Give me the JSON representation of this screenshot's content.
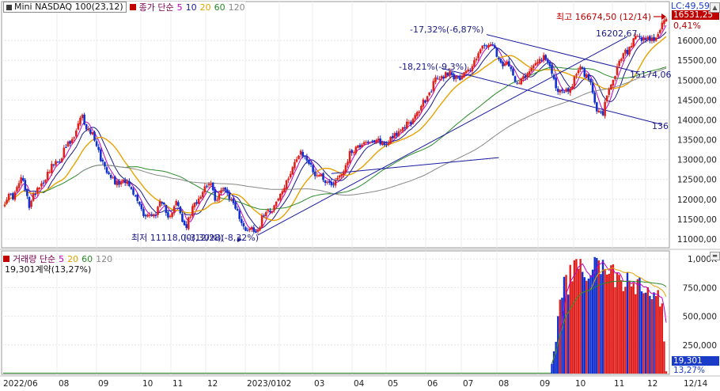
{
  "header": {
    "symbol": "Mini NASDAQ 100(23,12)",
    "ma_title": "종가 단순",
    "ma_periods": [
      "5",
      "10",
      "20",
      "60",
      "120"
    ]
  },
  "volume_header": {
    "title": "거래량 단순",
    "ma_periods": [
      "5",
      "20",
      "60",
      "120"
    ],
    "summary": "19,301계약(13,27%)"
  },
  "price_axis": {
    "ticks": [
      "16000,00",
      "15500,00",
      "15000,00",
      "14500,00",
      "14000,00",
      "13500,00",
      "13000,00",
      "12500,00",
      "12000,00",
      "11500,00",
      "11000,00"
    ],
    "current_value": "16531,25",
    "change_pct": "0,41%",
    "lc_label": "LC:49,59"
  },
  "volume_axis": {
    "ticks": [
      "1,000K",
      "750,000",
      "500,000",
      "250,000"
    ],
    "current_value": "19,301",
    "current_pct": "13,27%"
  },
  "x_axis": {
    "labels": [
      "2022/06",
      "08",
      "09",
      "10",
      "11",
      "12",
      "2023/01",
      "02",
      "03",
      "04",
      "05",
      "06",
      "07",
      "08",
      "09",
      "10",
      "11",
      "12",
      "12/14"
    ]
  },
  "annotations": {
    "high": "최고 16674,50 (12/14)",
    "low": "최저 11118,00(12/28)",
    "low_overlap": "(-3,30%)(-8,32%)",
    "drop1": "-17,32%(-6,87%)",
    "drop2": "-18,21%(-9,3%)",
    "level1": "16202,67",
    "level2": "15174,06",
    "level3": "136"
  },
  "colors": {
    "up": "#e0201c",
    "down": "#1030d0",
    "ma5": "#c000c0",
    "ma10": "#1a1a8a",
    "ma20": "#e6a200",
    "ma60": "#2a8a2a",
    "ma120": "#888888",
    "trend": "#1a1aa0",
    "price_box": "#c00000",
    "vol_box": "#1a3cc8"
  },
  "chart_data": [
    {
      "type": "candlestick",
      "title": "Mini NASDAQ 100(23,12)",
      "x_range": [
        "2022/06",
        "12/14"
      ],
      "ylim": [
        10800,
        16900
      ],
      "grid": true,
      "legend": "top-left",
      "series": [
        {
          "name": "종가 단순 5"
        },
        {
          "name": "10"
        },
        {
          "name": "20"
        },
        {
          "name": "60"
        },
        {
          "name": "120"
        }
      ],
      "waypoints": [
        [
          0,
          11950
        ],
        [
          4,
          12100
        ],
        [
          8,
          12500
        ],
        [
          12,
          11900
        ],
        [
          20,
          12600
        ],
        [
          28,
          13100
        ],
        [
          34,
          13600
        ],
        [
          38,
          14050
        ],
        [
          44,
          13500
        ],
        [
          50,
          12700
        ],
        [
          56,
          12400
        ],
        [
          60,
          12500
        ],
        [
          64,
          12000
        ],
        [
          68,
          11700
        ],
        [
          72,
          11500
        ],
        [
          76,
          11900
        ],
        [
          80,
          11600
        ],
        [
          84,
          11900
        ],
        [
          88,
          11300
        ],
        [
          92,
          11700
        ],
        [
          96,
          12200
        ],
        [
          100,
          12400
        ],
        [
          104,
          12000
        ],
        [
          108,
          12300
        ],
        [
          112,
          11900
        ],
        [
          116,
          11400
        ],
        [
          120,
          11200
        ],
        [
          124,
          11300
        ],
        [
          128,
          11700
        ],
        [
          134,
          11950
        ],
        [
          140,
          12700
        ],
        [
          145,
          13200
        ],
        [
          150,
          12800
        ],
        [
          156,
          12500
        ],
        [
          162,
          12400
        ],
        [
          167,
          12900
        ],
        [
          172,
          13350
        ],
        [
          178,
          13450
        ],
        [
          186,
          13400
        ],
        [
          192,
          13650
        ],
        [
          198,
          13900
        ],
        [
          204,
          14300
        ],
        [
          210,
          14900
        ],
        [
          216,
          15200
        ],
        [
          222,
          15050
        ],
        [
          228,
          15300
        ],
        [
          234,
          15850
        ],
        [
          238,
          15900
        ],
        [
          242,
          15500
        ],
        [
          248,
          15250
        ],
        [
          252,
          14950
        ],
        [
          256,
          15200
        ],
        [
          260,
          15450
        ],
        [
          264,
          15600
        ],
        [
          266,
          15400
        ],
        [
          270,
          14900
        ],
        [
          274,
          14600
        ],
        [
          278,
          14950
        ],
        [
          282,
          15350
        ],
        [
          286,
          15050
        ],
        [
          290,
          14300
        ],
        [
          293,
          14150
        ],
        [
          296,
          14700
        ],
        [
          300,
          15300
        ],
        [
          304,
          15700
        ],
        [
          308,
          15950
        ],
        [
          312,
          16050
        ],
        [
          316,
          15950
        ],
        [
          320,
          16150
        ],
        [
          322,
          16400
        ],
        [
          324,
          16550
        ]
      ],
      "volume": {
        "ylim": [
          0,
          1050000
        ],
        "start_index": 268,
        "profile": [
          [
            268,
            90000
          ],
          [
            270,
            300000
          ],
          [
            272,
            650000
          ],
          [
            275,
            820000
          ],
          [
            278,
            870000
          ],
          [
            281,
            910000
          ],
          [
            284,
            900000
          ],
          [
            287,
            950000
          ],
          [
            290,
            970000
          ],
          [
            293,
            930000
          ],
          [
            296,
            900000
          ],
          [
            299,
            860000
          ],
          [
            302,
            830000
          ],
          [
            305,
            810000
          ],
          [
            308,
            780000
          ],
          [
            311,
            760000
          ],
          [
            314,
            740000
          ],
          [
            317,
            700000
          ],
          [
            320,
            680000
          ],
          [
            322,
            560000
          ],
          [
            323,
            300000
          ],
          [
            324,
            19301
          ]
        ]
      }
    }
  ]
}
